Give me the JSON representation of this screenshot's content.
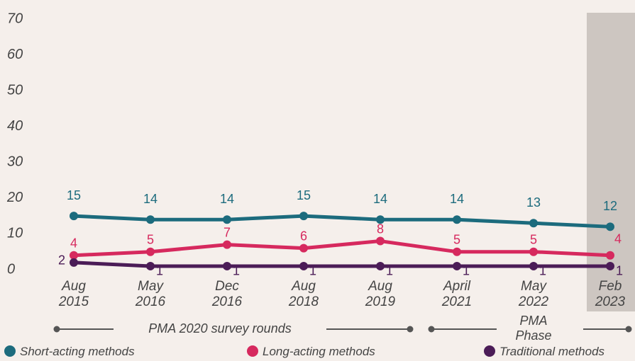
{
  "chart_data": {
    "type": "line",
    "categories": [
      "Aug 2015",
      "May 2016",
      "Dec 2016",
      "Aug 2018",
      "Aug 2019",
      "April 2021",
      "May 2022",
      "Feb 2023"
    ],
    "series": [
      {
        "name": "Short-acting methods",
        "color": "#1c6b7d",
        "values": [
          15,
          14,
          14,
          15,
          14,
          14,
          13,
          12
        ]
      },
      {
        "name": "Long-acting methods",
        "color": "#d6295e",
        "values": [
          4,
          5,
          7,
          6,
          8,
          5,
          5,
          4
        ]
      },
      {
        "name": "Traditional methods",
        "color": "#4b1c57",
        "values": [
          2,
          1,
          1,
          1,
          1,
          1,
          1,
          1
        ]
      }
    ],
    "ylim": [
      0,
      70
    ],
    "yticks": [
      0,
      10,
      20,
      30,
      40,
      50,
      60,
      70
    ],
    "annotations": [
      "PMA 2020 survey rounds",
      "PMA Phase"
    ]
  }
}
